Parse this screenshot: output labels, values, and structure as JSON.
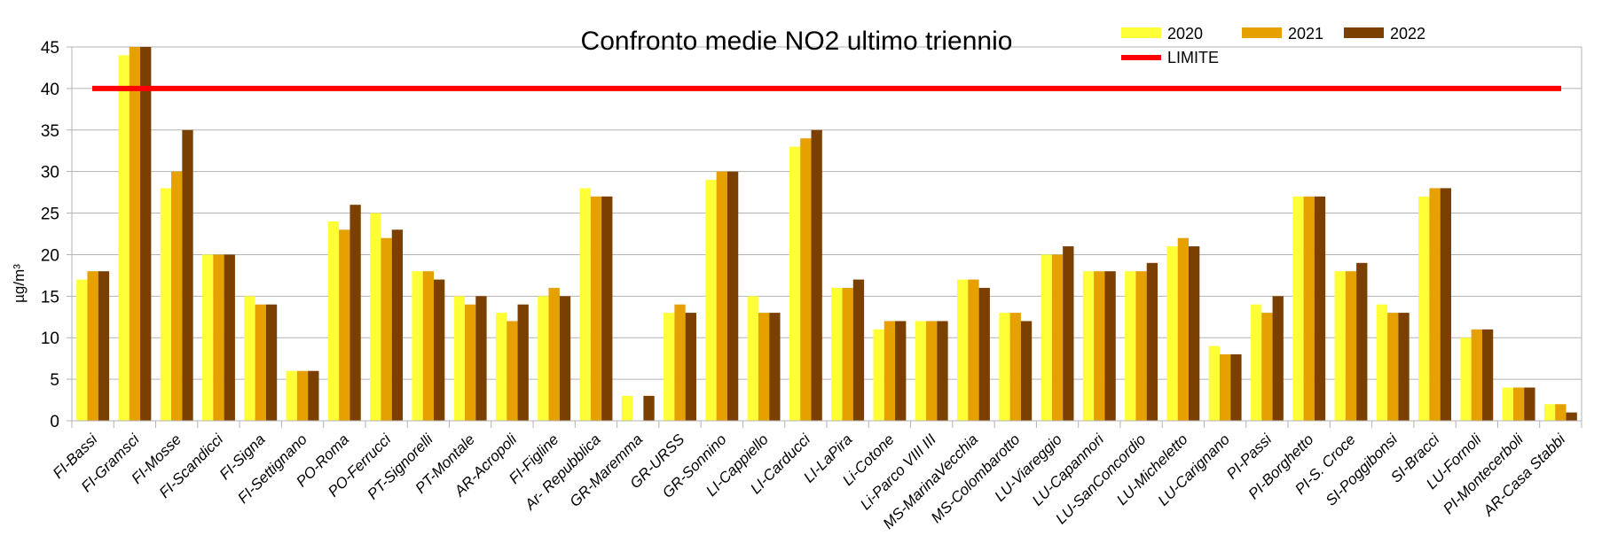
{
  "chart_data": {
    "type": "bar",
    "title": "Confronto medie NO2 ultimo triennio",
    "xlabel": "",
    "ylabel": "µg/m³",
    "ylim": [
      0,
      45
    ],
    "yticks": [
      0,
      5,
      10,
      15,
      20,
      25,
      30,
      35,
      40,
      45
    ],
    "grid": true,
    "legend_placement": "top-right",
    "categories": [
      "FI-Bassi",
      "FI-Gramsci",
      "FI-Mosse",
      "FI-Scandicci",
      "FI-Signa",
      "FI-Settignano",
      "PO-Roma",
      "PO-Ferrucci",
      "PT-Signorelli",
      "PT-Montale",
      "AR-Acropoli",
      "FI-Figline",
      "Ar- Repubblica",
      "GR-Maremma",
      "GR-URSS",
      "GR-Sonnino",
      "LI-Cappiello",
      "LI-Carducci",
      "LI-LaPira",
      "Li-Cotone",
      "Li-Parco VIII III",
      "MS-MarinaVecchia",
      "MS-Colombarotto",
      "LU-Viareggio",
      "LU-Capannori",
      "LU-SanConcordio",
      "LU-Micheletto",
      "LU-Carignano",
      "PI-Passi",
      "PI-Borghetto",
      "PI-S. Croce",
      "SI-Poggibonsi",
      "SI-Bracci",
      "LU-Fornoli",
      "PI-Montecerboli",
      "AR-Casa Stabbi"
    ],
    "series": [
      {
        "name": "2020",
        "color": "#ffff38",
        "values": [
          17,
          44,
          28,
          20,
          15,
          6,
          24,
          25,
          18,
          15,
          13,
          15,
          28,
          3,
          13,
          29,
          15,
          33,
          16,
          11,
          12,
          17,
          13,
          20,
          18,
          18,
          21,
          9,
          14,
          27,
          18,
          14,
          27,
          10,
          4,
          2
        ]
      },
      {
        "name": "2021",
        "color": "#e6a000",
        "values": [
          18,
          45,
          30,
          20,
          14,
          6,
          23,
          22,
          18,
          14,
          12,
          16,
          27,
          null,
          14,
          30,
          13,
          34,
          16,
          12,
          12,
          17,
          13,
          20,
          18,
          18,
          22,
          8,
          13,
          27,
          18,
          13,
          28,
          11,
          4,
          2
        ]
      },
      {
        "name": "2022",
        "color": "#7b3f00",
        "values": [
          18,
          45,
          35,
          20,
          14,
          6,
          26,
          23,
          17,
          15,
          14,
          15,
          27,
          3,
          13,
          30,
          13,
          35,
          17,
          12,
          12,
          16,
          12,
          21,
          18,
          19,
          21,
          8,
          15,
          27,
          19,
          13,
          28,
          11,
          4,
          1
        ]
      }
    ],
    "reference_line": {
      "name": "LIMITE",
      "value": 40,
      "color": "#ff0000"
    }
  }
}
